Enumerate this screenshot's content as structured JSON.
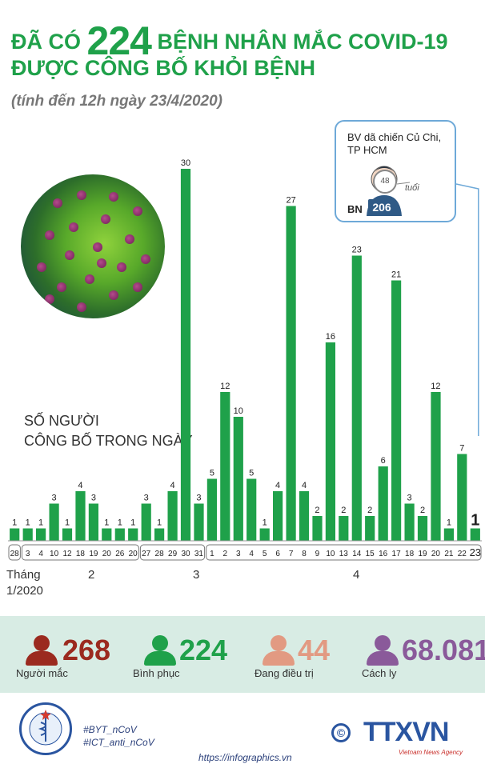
{
  "title": {
    "prefix": "ĐÃ CÓ",
    "number": "224",
    "suffix": "BỆNH NHÂN MẮC COVID-19",
    "line2": "ĐƯỢC CÔNG BỐ KHỎI BỆNH"
  },
  "subtitle": "(tính đến 12h ngày 23/4/2020)",
  "day_caption": [
    "SỐ NGƯỜI",
    "CÔNG BỐ TRONG NGÀY"
  ],
  "callout": {
    "text": "BV dã chiến Củ Chi, TP HCM",
    "age": "48",
    "age_unit": "tuổi",
    "bn_label": "BN",
    "bn_number": "206"
  },
  "month_axis": {
    "prefix": "Tháng",
    "first": "1/2020",
    "labels": [
      "2",
      "3",
      "4"
    ]
  },
  "chart_data": {
    "type": "bar",
    "title": "ĐÃ CÓ 224 BỆNH NHÂN MẮC COVID-19 ĐƯỢC CÔNG BỐ KHỎI BỆNH",
    "subtitle": "(tính đến 12h ngày 23/4/2020)",
    "ylabel": "SỐ NGƯỜI CÔNG BỐ TRONG NGÀY",
    "bar_color": "#1fa14a",
    "groups": [
      {
        "month": "1/2020",
        "categories": [
          "28"
        ],
        "values": [
          1
        ]
      },
      {
        "month": "2",
        "categories": [
          "3",
          "4",
          "10",
          "12",
          "18",
          "19",
          "20",
          "26",
          "20"
        ],
        "values": [
          1,
          1,
          3,
          1,
          4,
          3,
          1,
          1,
          1
        ]
      },
      {
        "month": "3",
        "categories": [
          "27",
          "28",
          "29",
          "30",
          "31"
        ],
        "values": [
          3,
          1,
          4,
          30,
          3
        ]
      },
      {
        "month": "4",
        "categories": [
          "1",
          "2",
          "3",
          "4",
          "5",
          "6",
          "7",
          "8",
          "9",
          "10",
          "13",
          "14",
          "15",
          "16",
          "17",
          "18",
          "19",
          "20",
          "21",
          "22",
          "23"
        ],
        "values": [
          5,
          12,
          10,
          5,
          1,
          4,
          27,
          4,
          2,
          16,
          2,
          23,
          2,
          6,
          21,
          3,
          2,
          12,
          1,
          7,
          1
        ]
      }
    ],
    "grid": false,
    "legend": "none"
  },
  "stats": [
    {
      "value": "268",
      "label": "Người mắc",
      "color": "#9b2a1f",
      "icon": "person-icon"
    },
    {
      "value": "224",
      "label": "Bình phục",
      "color": "#1fa14a",
      "icon": "person-icon"
    },
    {
      "value": "44",
      "label": "Đang điều trị",
      "color": "#e29a82",
      "icon": "person-icon"
    },
    {
      "value": "68.081",
      "label": "Cách ly",
      "color": "#8a5a9a",
      "icon": "person-icon"
    }
  ],
  "footer": {
    "hashtags": [
      "#BYT_nCoV",
      "#ICT_anti_nCoV"
    ],
    "url": "https://infographics.vn",
    "copyright": "©",
    "brand": "TTXVN",
    "brand_sub": "Vietnam News Agency",
    "moh_top": "BỘ Y TẾ",
    "moh_bottom": "MINISTRY OF HEALTH"
  }
}
